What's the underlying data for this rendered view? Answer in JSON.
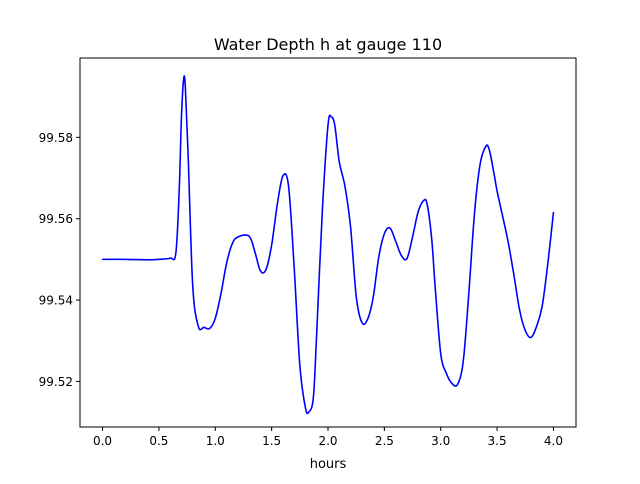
{
  "chart_data": {
    "type": "line",
    "title": "Water Depth h at gauge 110",
    "xlabel": "hours",
    "ylabel": "",
    "xlim": [
      -0.2,
      4.2
    ],
    "ylim": [
      99.5088,
      99.5995
    ],
    "x_ticks": [
      0.0,
      0.5,
      1.0,
      1.5,
      2.0,
      2.5,
      3.0,
      3.5,
      4.0
    ],
    "x_tick_labels": [
      "0.0",
      "0.5",
      "1.0",
      "1.5",
      "2.0",
      "2.5",
      "3.0",
      "3.5",
      "4.0"
    ],
    "y_ticks": [
      99.52,
      99.54,
      99.56,
      99.58
    ],
    "y_tick_labels": [
      "99.52",
      "99.54",
      "99.56",
      "99.58"
    ],
    "grid": false,
    "series": [
      {
        "color": "#0000ff",
        "x": [
          0.0,
          0.2,
          0.4,
          0.5,
          0.6,
          0.65,
          0.68,
          0.7,
          0.72,
          0.735,
          0.76,
          0.8,
          0.85,
          0.9,
          0.95,
          1.0,
          1.05,
          1.1,
          1.15,
          1.2,
          1.3,
          1.35,
          1.4,
          1.45,
          1.5,
          1.55,
          1.6,
          1.65,
          1.7,
          1.75,
          1.8,
          1.83,
          1.87,
          1.9,
          1.95,
          2.0,
          2.03,
          2.06,
          2.1,
          2.15,
          2.2,
          2.25,
          2.3,
          2.35,
          2.4,
          2.45,
          2.5,
          2.55,
          2.6,
          2.65,
          2.7,
          2.75,
          2.8,
          2.85,
          2.88,
          2.92,
          2.95,
          3.0,
          3.05,
          3.1,
          3.15,
          3.2,
          3.25,
          3.3,
          3.35,
          3.4,
          3.43,
          3.47,
          3.5,
          3.55,
          3.6,
          3.65,
          3.7,
          3.75,
          3.8,
          3.85,
          3.9,
          3.95,
          4.0
        ],
        "y": [
          99.55,
          99.55,
          99.5499,
          99.55,
          99.5503,
          99.5515,
          99.567,
          99.585,
          99.5945,
          99.592,
          99.575,
          99.5435,
          99.5335,
          99.5333,
          99.533,
          99.5355,
          99.5415,
          99.549,
          99.5538,
          99.5555,
          99.5557,
          99.552,
          99.5472,
          99.5475,
          99.5535,
          99.5635,
          99.5705,
          99.568,
          99.548,
          99.524,
          99.5135,
          99.5125,
          99.516,
          99.532,
          99.562,
          99.583,
          99.585,
          99.583,
          99.574,
          99.568,
          99.558,
          99.541,
          99.5345,
          99.5352,
          99.5405,
          99.5505,
          99.5563,
          99.5577,
          99.5545,
          99.551,
          99.5502,
          99.5555,
          99.5617,
          99.5645,
          99.5635,
          99.555,
          99.5435,
          99.5268,
          99.522,
          99.5195,
          99.5193,
          99.525,
          99.542,
          99.5615,
          99.5735,
          99.5778,
          99.577,
          99.5715,
          99.5668,
          99.5605,
          99.554,
          99.546,
          99.5375,
          99.5325,
          99.5308,
          99.5335,
          99.5385,
          99.549,
          99.5615
        ]
      }
    ]
  }
}
